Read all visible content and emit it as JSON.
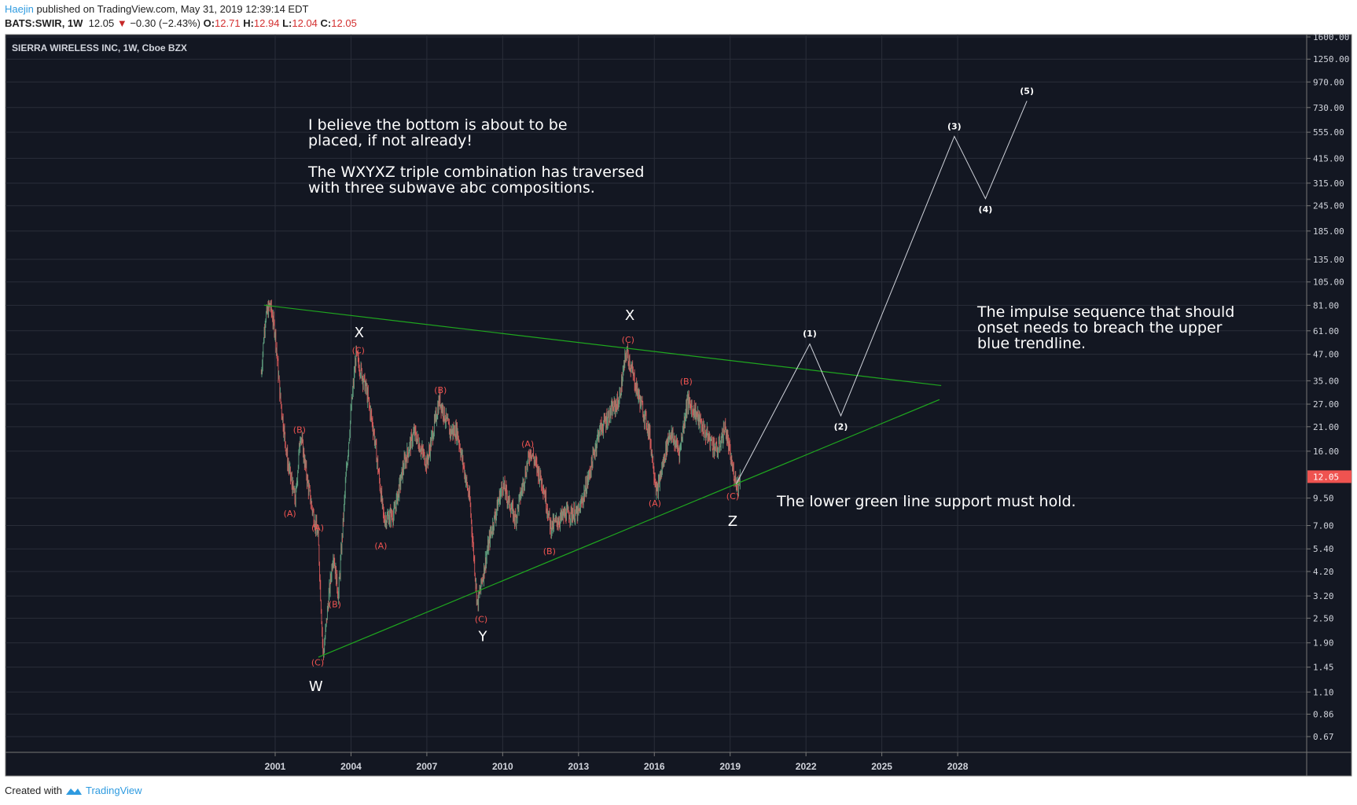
{
  "header": {
    "user": "Haejin",
    "published": "published on TradingView.com, May 31, 2019 12:39:14 EDT",
    "symbol": "BATS:SWIR, 1W",
    "last": "12.05",
    "change": "−0.30 (−2.43%)",
    "o_label": "O:",
    "o": "12.71",
    "h_label": "H:",
    "h": "12.94",
    "l_label": "L:",
    "l": "12.04",
    "c_label": "C:",
    "c": "12.05"
  },
  "footer": {
    "created": "Created with",
    "brand": "TradingView"
  },
  "annotations": {
    "note1": "I believe the bottom is about to be\nplaced, if not already!\n\nThe WXYXZ triple combination has traversed\nwith three subwave abc compositions.",
    "note2": "The impulse sequence that should\nonset needs to breach the upper\nblue trendline.",
    "note3": "The lower green line support must hold."
  },
  "chart_data": {
    "type": "candlestick",
    "title": "SIERRA WIRELESS INC, 1W, Cboe BZX",
    "y_scale": "log",
    "ylim": [
      0.67,
      1600
    ],
    "xlim": [
      2000.0,
      2033.0
    ],
    "y_ticks": [
      "1600.00",
      "1250.00",
      "970.00",
      "730.00",
      "555.00",
      "415.00",
      "315.00",
      "245.00",
      "185.00",
      "135.00",
      "105.00",
      "81.00",
      "61.00",
      "47.00",
      "35.00",
      "27.00",
      "21.00",
      "16.00",
      "9.50",
      "7.00",
      "5.40",
      "4.20",
      "3.20",
      "2.50",
      "1.90",
      "1.45",
      "1.10",
      "0.86",
      "0.67"
    ],
    "x_ticks": [
      "2001",
      "2004",
      "2007",
      "2010",
      "2013",
      "2016",
      "2019",
      "2022",
      "2025",
      "2028"
    ],
    "current_price": "12.05",
    "colors": {
      "bg": "#131722",
      "grid": "#2a2e39",
      "up": "#5e9e7e",
      "down": "#d75a5a",
      "trend": "#1fa61f",
      "wave_red": "#ef5350",
      "projection": "#d1d4dc",
      "price_badge": "#ef5350"
    },
    "price_path": [
      [
        2000.45,
        38
      ],
      [
        2000.6,
        70
      ],
      [
        2000.8,
        82
      ],
      [
        2001.0,
        60
      ],
      [
        2001.2,
        29
      ],
      [
        2001.5,
        14
      ],
      [
        2001.8,
        9.2
      ],
      [
        2002.0,
        19.8
      ],
      [
        2002.3,
        11
      ],
      [
        2002.5,
        8
      ],
      [
        2002.7,
        6.2
      ],
      [
        2002.9,
        1.62
      ],
      [
        2003.1,
        3
      ],
      [
        2003.3,
        5.2
      ],
      [
        2003.5,
        3.2
      ],
      [
        2003.8,
        12
      ],
      [
        2004.0,
        25
      ],
      [
        2004.2,
        47
      ],
      [
        2004.6,
        32
      ],
      [
        2004.9,
        20
      ],
      [
        2005.3,
        7.5
      ],
      [
        2005.7,
        8
      ],
      [
        2006.1,
        14
      ],
      [
        2006.5,
        19.8
      ],
      [
        2007.0,
        14
      ],
      [
        2007.5,
        28.5
      ],
      [
        2007.9,
        20
      ],
      [
        2008.2,
        20
      ],
      [
        2008.7,
        9.2
      ],
      [
        2009.0,
        2.9
      ],
      [
        2009.5,
        6.2
      ],
      [
        2010.0,
        11.1
      ],
      [
        2010.5,
        7.5
      ],
      [
        2011.1,
        16.3
      ],
      [
        2011.6,
        11
      ],
      [
        2011.9,
        6.9
      ],
      [
        2012.5,
        8
      ],
      [
        2013.0,
        8
      ],
      [
        2013.4,
        12
      ],
      [
        2013.8,
        19.8
      ],
      [
        2014.3,
        25
      ],
      [
        2014.6,
        28
      ],
      [
        2014.9,
        49
      ],
      [
        2015.3,
        32
      ],
      [
        2015.8,
        19.8
      ],
      [
        2016.1,
        10
      ],
      [
        2016.6,
        19.8
      ],
      [
        2017.0,
        16
      ],
      [
        2017.3,
        28
      ],
      [
        2017.6,
        25
      ],
      [
        2018.0,
        19.8
      ],
      [
        2018.5,
        16
      ],
      [
        2018.8,
        21
      ],
      [
        2019.1,
        13
      ],
      [
        2019.3,
        11
      ],
      [
        2019.4,
        12.05
      ]
    ],
    "wave_labels_red": [
      {
        "text": "(B)",
        "x": 2001.96,
        "y": 20.3
      },
      {
        "text": "(A)",
        "x": 2001.58,
        "y": 8.0
      },
      {
        "text": "(A)",
        "x": 2002.68,
        "y": 6.86
      },
      {
        "text": "(B)",
        "x": 2003.36,
        "y": 2.92
      },
      {
        "text": "(C)",
        "x": 2002.68,
        "y": 1.53
      },
      {
        "text": "(C)",
        "x": 2004.29,
        "y": 49.2
      },
      {
        "text": "(A)",
        "x": 2005.18,
        "y": 5.61
      },
      {
        "text": "(B)",
        "x": 2007.54,
        "y": 31.6
      },
      {
        "text": "(C)",
        "x": 2009.15,
        "y": 2.48
      },
      {
        "text": "(A)",
        "x": 2010.99,
        "y": 17.4
      },
      {
        "text": "(B)",
        "x": 2011.85,
        "y": 5.28
      },
      {
        "text": "(C)",
        "x": 2014.96,
        "y": 55.2
      },
      {
        "text": "(A)",
        "x": 2016.02,
        "y": 8.97
      },
      {
        "text": "(B)",
        "x": 2017.26,
        "y": 34.8
      },
      {
        "text": "(C)",
        "x": 2019.1,
        "y": 9.7
      }
    ],
    "wave_labels_major": [
      {
        "text": "X",
        "x": 2004.32,
        "y": 60.3
      },
      {
        "text": "W",
        "x": 2002.61,
        "y": 1.18
      },
      {
        "text": "Y",
        "x": 2009.21,
        "y": 2.06
      },
      {
        "text": "X",
        "x": 2015.03,
        "y": 73.1
      },
      {
        "text": "Z",
        "x": 2019.1,
        "y": 7.41
      }
    ],
    "impulse_labels": [
      {
        "text": "(1)",
        "x": 2022.15,
        "y": 59.2
      },
      {
        "text": "(2)",
        "x": 2023.38,
        "y": 21.1
      },
      {
        "text": "(3)",
        "x": 2027.87,
        "y": 594
      },
      {
        "text": "(4)",
        "x": 2029.1,
        "y": 236
      },
      {
        "text": "(5)",
        "x": 2030.74,
        "y": 881
      }
    ],
    "projection_path": [
      [
        2019.24,
        11.1
      ],
      [
        2022.15,
        52.7
      ],
      [
        2023.38,
        23.7
      ],
      [
        2027.87,
        530
      ],
      [
        2029.1,
        265
      ],
      [
        2030.74,
        785
      ]
    ],
    "trendlines": [
      {
        "name": "upper",
        "points": [
          [
            2000.56,
            81.1
          ],
          [
            2027.35,
            33.2
          ]
        ]
      },
      {
        "name": "lower",
        "points": [
          [
            2002.71,
            1.62
          ],
          [
            2027.28,
            28.4
          ]
        ]
      }
    ]
  }
}
